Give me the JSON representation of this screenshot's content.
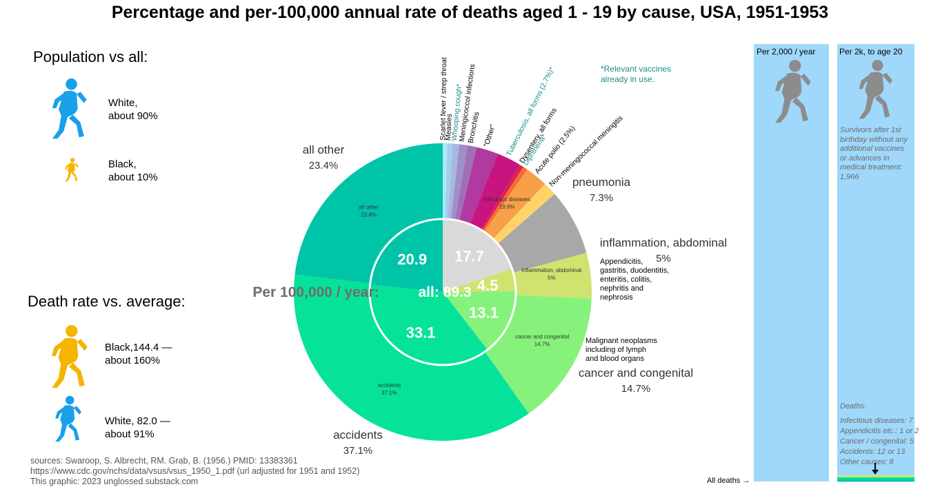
{
  "title": "Percentage and per-100,000 annual rate of deaths aged 1 - 19 by cause, USA, 1951-1953",
  "population": {
    "heading": "Population vs all:",
    "white": "White,\nabout 90%",
    "black": "Black,\nabout 10%"
  },
  "death_rate": {
    "heading": "Death rate vs. average:",
    "black": "Black,144.4 —\nabout 160%",
    "white": "White, 82.0 —\nabout 91%"
  },
  "sources": [
    "sources: Swaroop, S. Albrecht, RM. Grab, B. (1956.) PMID: 13383361",
    "https://www.cdc.gov/nchs/data/vsus/vsus_1950_1.pdf (url adjusted for 1951 and 1952)",
    "This graphic: 2023 unglossed.substack.com"
  ],
  "vaccine_note": "*Relevant vaccines\nalready in use.",
  "columns": {
    "left_header": "Per 2,000 / year",
    "right_header": "Per 2k, to age 20",
    "survivors": "Survivors after 1st birthday without any additional vaccines or advances in medical treatment: 1,966",
    "deaths_title": "Deaths:",
    "deaths_lines": [
      "Infectious diseases: 7",
      "Appendicitis etc.: 1 or 2",
      "Cancer / congenital: 5",
      "Accidents: 12 or 13",
      "Other causes: 8"
    ],
    "all_deaths_label": "All deaths →"
  },
  "colors": {
    "teal_text": "#1a8a8a",
    "column_fill": "#9fd8fb",
    "blue_figure": "#1aa0ea",
    "gold_figure": "#f4b400",
    "gray_figure": "#8c8c8c"
  },
  "chart_data": {
    "type": "pie",
    "subtype": "sunburst",
    "center_label": "Per 100,000 / year:",
    "center_value_label": "all: 89.3",
    "inner_ring": [
      {
        "label": "infectious diseases",
        "pct_label": "19.8%",
        "value": 19.8,
        "rate": "17.7",
        "color": "#d9d9d9"
      },
      {
        "label": "inflammation, abdominal",
        "pct_label": "5%",
        "value": 5.0,
        "rate": "4.5",
        "color": "#cfe36e"
      },
      {
        "label": "cancer and congenital",
        "pct_label": "14.7%",
        "value": 14.7,
        "rate": "13.1",
        "color": "#86f27c"
      },
      {
        "label": "accidents",
        "pct_label": "37.1%",
        "value": 37.1,
        "rate": "33.1",
        "color": "#06e29a"
      },
      {
        "label": "all other",
        "pct_label": "23.4%",
        "value": 23.4,
        "rate": "20.9",
        "color": "#00c4a8"
      }
    ],
    "outer_ring": [
      {
        "label": "Scarlet fever / strep throat",
        "value": 0.5,
        "color": "#aee6fb",
        "vaccine": false
      },
      {
        "label": "Measles",
        "value": 0.6,
        "color": "#9fd0ef",
        "vaccine": false
      },
      {
        "label": "Whooping cough*",
        "value": 0.7,
        "color": "#a9b6de",
        "vaccine": true
      },
      {
        "label": "Meningicoccol infections",
        "value": 0.9,
        "color": "#9f8ec9",
        "vaccine": false
      },
      {
        "label": "Bronchitis",
        "value": 1.0,
        "color": "#a070b5",
        "vaccine": false
      },
      {
        "label": "\"Other\"",
        "value": 2.4,
        "color": "#b03aa0",
        "vaccine": false
      },
      {
        "label": "Tuberculosis, all forms (2.7%)*",
        "value": 2.7,
        "color": "#c8147e",
        "vaccine": true
      },
      {
        "label": "Dysentery, all forms",
        "value": 0.4,
        "color": "#e0204a",
        "vaccine": false
      },
      {
        "label": "Diphtheria*",
        "value": 0.5,
        "color": "#f56a3c",
        "vaccine": true
      },
      {
        "label": "Acute polio (2.5%)",
        "value": 2.5,
        "color": "#f7a047",
        "vaccine": false
      },
      {
        "label": "Non-meningococcal meningitis",
        "value": 1.5,
        "color": "#ffd36a",
        "vaccine": false
      },
      {
        "label": "pneumonia",
        "pct_label": "7.3%",
        "value": 7.3,
        "color": "#a8a8a8",
        "vaccine": false
      },
      {
        "label": "inflammation, abdominal",
        "pct_label": "5%",
        "value": 5.0,
        "color": "#cfe36e",
        "vaccine": false
      },
      {
        "label": "cancer and congenital",
        "pct_label": "14.7%",
        "value": 14.7,
        "color": "#86f27c",
        "vaccine": false
      },
      {
        "label": "accidents",
        "pct_label": "37.1%",
        "value": 37.1,
        "color": "#06e29a",
        "vaccine": false
      },
      {
        "label": "all other",
        "pct_label": "23.4%",
        "value": 23.4,
        "color": "#00c4a8",
        "vaccine": false
      }
    ],
    "annotations": {
      "appendicitis": "Appendicitis,\ngastritis, duodentitis,\nenteritis, colitis,\nnephritis and\nnephrosis",
      "malignant": "Malignant neoplasms\nincluding of lymph\nand blood organs"
    }
  }
}
